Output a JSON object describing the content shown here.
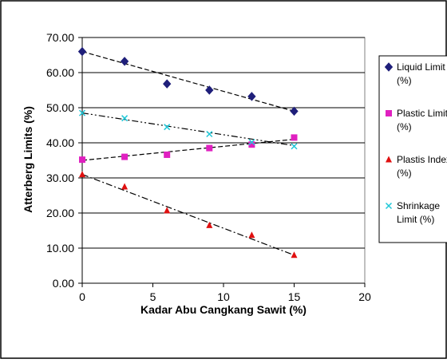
{
  "chart_data": {
    "type": "scatter",
    "xlabel": "Kadar Abu Cangkang Sawit (%)",
    "ylabel": "Atterberg Limits (%)",
    "xlim": [
      0,
      20
    ],
    "ylim": [
      0,
      70
    ],
    "x_ticks": [
      "0",
      "5",
      "10",
      "15",
      "20"
    ],
    "y_ticks": [
      "0.00",
      "10.00",
      "20.00",
      "30.00",
      "40.00",
      "50.00",
      "60.00",
      "70.00"
    ],
    "grid": "horizontal",
    "legend_position": "right",
    "trendlines": "linear, dashed",
    "series": [
      {
        "name_lines": [
          "Liquid Limit",
          "(%)"
        ],
        "marker": "diamond",
        "color": "#1f1f7a",
        "x": [
          0,
          3,
          6,
          9,
          12,
          15
        ],
        "y": [
          66.0,
          63.2,
          56.8,
          55.0,
          53.2,
          49.0
        ],
        "trend_y": [
          66.0,
          49.0
        ]
      },
      {
        "name_lines": [
          "Plastic Limit",
          "(%)"
        ],
        "marker": "square",
        "color": "#e020c0",
        "x": [
          0,
          3,
          6,
          9,
          12,
          15
        ],
        "y": [
          35.2,
          36.0,
          36.6,
          38.5,
          39.5,
          41.5
        ],
        "trend_y": [
          35.0,
          41.0
        ]
      },
      {
        "name_lines": [
          "Plastis Index",
          "(%)"
        ],
        "marker": "triangle",
        "color": "#e01010",
        "x": [
          0,
          3,
          6,
          9,
          12,
          15
        ],
        "y": [
          31.0,
          27.5,
          20.7,
          16.5,
          13.7,
          8.0
        ],
        "trend_y": [
          31.0,
          8.0
        ]
      },
      {
        "name_lines": [
          "Shrinkage",
          "Limit (%)"
        ],
        "marker": "x",
        "color": "#20c8d8",
        "x": [
          0,
          3,
          6,
          9,
          12,
          15
        ],
        "y": [
          48.5,
          47.0,
          44.5,
          42.5,
          40.2,
          39.0
        ],
        "trend_y": [
          48.5,
          39.2
        ]
      }
    ]
  }
}
